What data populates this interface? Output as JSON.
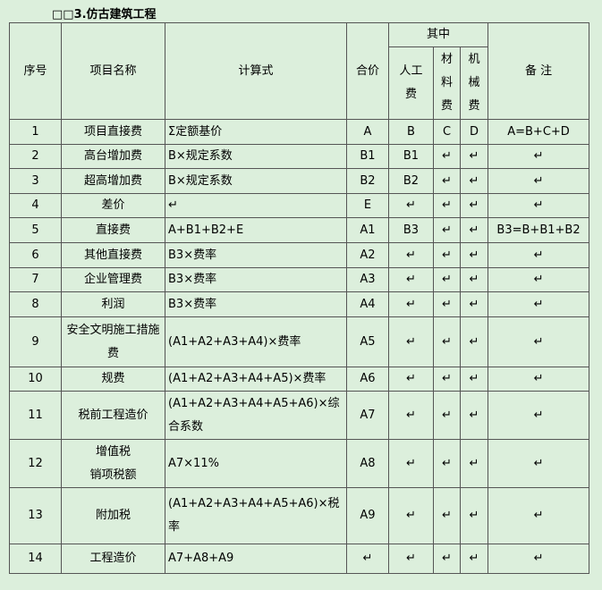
{
  "title": "□□3.仿古建筑工程",
  "table": {
    "header": {
      "seq": "序号",
      "name": "项目名称",
      "formula": "计算式",
      "total": "合价",
      "group": "其中",
      "labor": "人工费",
      "material": "材料费",
      "machine": "机械费",
      "note": "备 注"
    },
    "rows": [
      [
        "1",
        "项目直接费",
        "Σ定额基价",
        "A",
        "B",
        "C",
        "D",
        "A=B+C+D"
      ],
      [
        "2",
        "高台增加费",
        "B×规定系数",
        "B1",
        "B1",
        "↵",
        "↵",
        "↵"
      ],
      [
        "3",
        "超高增加费",
        "B×规定系数",
        "B2",
        "B2",
        "↵",
        "↵",
        "↵"
      ],
      [
        "4",
        "差价",
        "↵",
        "E",
        "↵",
        "↵",
        "↵",
        "↵"
      ],
      [
        "5",
        "直接费",
        "A+B1+B2+E",
        "A1",
        "B3",
        "↵",
        "↵",
        "B3=B+B1+B2"
      ],
      [
        "6",
        "其他直接费",
        "B3×费率",
        "A2",
        "↵",
        "↵",
        "↵",
        "↵"
      ],
      [
        "7",
        "企业管理费",
        "B3×费率",
        "A3",
        "↵",
        "↵",
        "↵",
        "↵"
      ],
      [
        "8",
        "利润",
        "B3×费率",
        "A4",
        "↵",
        "↵",
        "↵",
        "↵"
      ],
      [
        "9",
        "安全文明施工措施费",
        "(A1+A2+A3+A4)×费率",
        "A5",
        "↵",
        "↵",
        "↵",
        "↵"
      ],
      [
        "10",
        "规费",
        "(A1+A2+A3+A4+A5)×费率",
        "A6",
        "↵",
        "↵",
        "↵",
        "↵"
      ],
      [
        "11",
        "税前工程造价",
        "(A1+A2+A3+A4+A5+A6)×综合系数",
        "A7",
        "↵",
        "↵",
        "↵",
        "↵"
      ],
      [
        "12",
        "增值税\n销项税额",
        "A7×11%",
        "A8",
        "↵",
        "↵",
        "↵",
        "↵"
      ],
      [
        "13",
        "附加税",
        "(A1+A2+A3+A4+A5+A6)×税率",
        "A9",
        "↵",
        "↵",
        "↵",
        "↵"
      ],
      [
        "14",
        "工程造价",
        "A7+A8+A9",
        "↵",
        "↵",
        "↵",
        "↵",
        "↵"
      ]
    ]
  }
}
